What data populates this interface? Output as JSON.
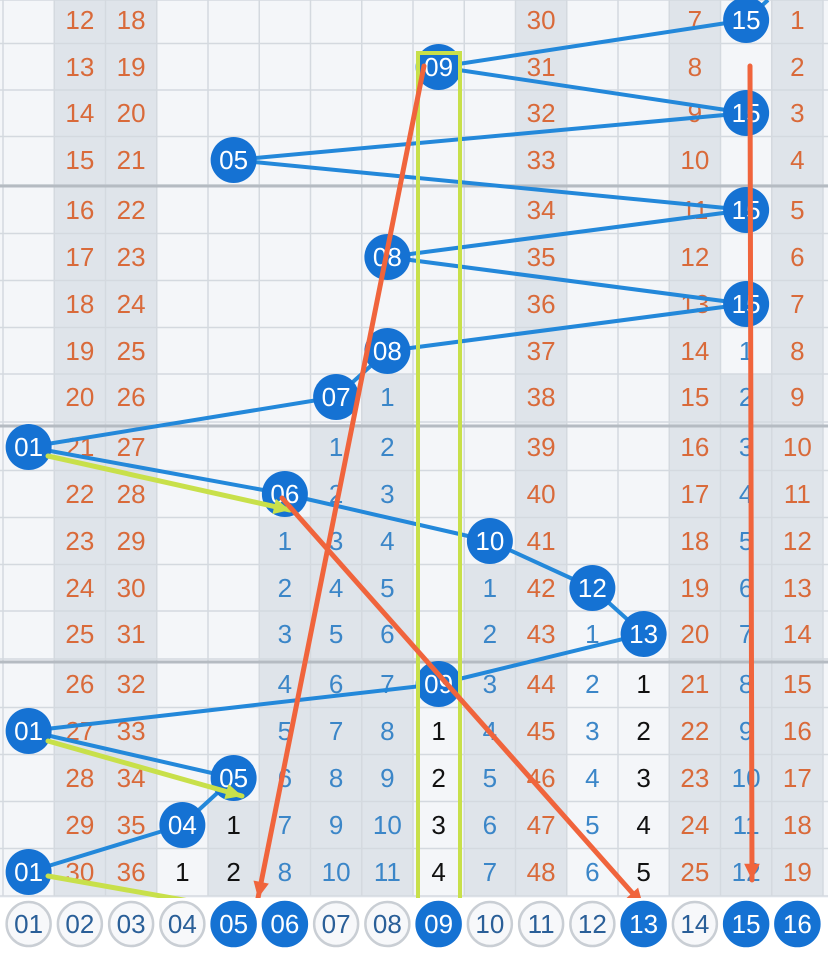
{
  "colors": {
    "grid_bg": "#f4f6f9",
    "grid_line": "#d4d9df",
    "group_line": "#b5bbc2",
    "shade": "#dfe4ea",
    "orange_text": "#d96a3a",
    "blue_text": "#3b86c8",
    "black_text": "#111111",
    "ball_blue": "#1572d3",
    "ball_text": "#ffffff",
    "line_blue": "#2388da",
    "line_orange": "#f0643c",
    "line_lime": "#c8e04a",
    "footer_ring": "#c9ced4"
  },
  "footer": {
    "labels": [
      "01",
      "02",
      "03",
      "04",
      "05",
      "06",
      "07",
      "08",
      "09",
      "10",
      "11",
      "12",
      "13",
      "14",
      "15",
      "16"
    ],
    "highlighted": [
      "05",
      "06",
      "09",
      "13",
      "15",
      "16"
    ]
  },
  "rows": [
    {
      "c2": "12",
      "c3": "18",
      "c11": "30",
      "c14": "7",
      "c16": "1",
      "ball": {
        "col": 15,
        "label": "15"
      }
    },
    {
      "c2": "13",
      "c3": "19",
      "c11": "31",
      "c14": "8",
      "c16": "2",
      "ball": {
        "col": 9,
        "label": "09"
      }
    },
    {
      "c2": "14",
      "c3": "20",
      "c11": "32",
      "c14": "9",
      "c16": "3",
      "ball": {
        "col": 15,
        "label": "15"
      }
    },
    {
      "c2": "15",
      "c3": "21",
      "c11": "33",
      "c14": "10",
      "c16": "4",
      "ball": {
        "col": 5,
        "label": "05"
      }
    },
    {
      "c2": "16",
      "c3": "22",
      "c11": "34",
      "c14": "11",
      "c16": "5",
      "ball": {
        "col": 15,
        "label": "15"
      }
    },
    {
      "c2": "17",
      "c3": "23",
      "c11": "35",
      "c14": "12",
      "c16": "6",
      "ball": {
        "col": 8,
        "label": "08"
      }
    },
    {
      "c2": "18",
      "c3": "24",
      "c11": "36",
      "c14": "13",
      "c16": "7",
      "ball": {
        "col": 15,
        "label": "15"
      }
    },
    {
      "c2": "19",
      "c3": "25",
      "c11": "37",
      "c14": "14",
      "c15": "1",
      "c16": "8",
      "ball": {
        "col": 8,
        "label": "08"
      }
    },
    {
      "c2": "20",
      "c3": "26",
      "c8": "1",
      "c11": "38",
      "c14": "15",
      "c15": "2",
      "c16": "9",
      "ball": {
        "col": 7,
        "label": "07"
      }
    },
    {
      "c2": "21",
      "c3": "27",
      "c7": "1",
      "c8": "2",
      "c11": "39",
      "c14": "16",
      "c15": "3",
      "c16": "10",
      "ball": {
        "col": 1,
        "label": "01"
      }
    },
    {
      "c2": "22",
      "c3": "28",
      "c7": "2",
      "c8": "3",
      "c11": "40",
      "c14": "17",
      "c15": "4",
      "c16": "11",
      "ball": {
        "col": 6,
        "label": "06"
      }
    },
    {
      "c2": "23",
      "c3": "29",
      "c6": "1",
      "c7": "3",
      "c8": "4",
      "c11": "41",
      "c14": "18",
      "c15": "5",
      "c16": "12",
      "ball": {
        "col": 10,
        "label": "10"
      }
    },
    {
      "c2": "24",
      "c3": "30",
      "c6": "2",
      "c7": "4",
      "c8": "5",
      "c10": "1",
      "c11": "42",
      "c14": "19",
      "c15": "6",
      "c16": "13",
      "ball": {
        "col": 12,
        "label": "12"
      }
    },
    {
      "c2": "25",
      "c3": "31",
      "c6": "3",
      "c7": "5",
      "c8": "6",
      "c10": "2",
      "c11": "43",
      "c12": "1",
      "c14": "20",
      "c15": "7",
      "c16": "14",
      "ball": {
        "col": 13,
        "label": "13"
      }
    },
    {
      "c2": "26",
      "c3": "32",
      "c6": "4",
      "c7": "6",
      "c8": "7",
      "c10": "3",
      "c11": "44",
      "c12": "2",
      "c13": "1",
      "c14": "21",
      "c15": "8",
      "c16": "15",
      "ball": {
        "col": 9,
        "label": "09"
      }
    },
    {
      "c2": "27",
      "c3": "33",
      "c6": "5",
      "c7": "7",
      "c8": "8",
      "c9": "1",
      "c10": "4",
      "c11": "45",
      "c12": "3",
      "c13": "2",
      "c14": "22",
      "c15": "9",
      "c16": "16",
      "ball": {
        "col": 1,
        "label": "01"
      }
    },
    {
      "c2": "28",
      "c3": "34",
      "c6": "6",
      "c7": "8",
      "c8": "9",
      "c9": "2",
      "c10": "5",
      "c11": "46",
      "c12": "4",
      "c13": "3",
      "c14": "23",
      "c15": "10",
      "c16": "17",
      "ball": {
        "col": 5,
        "label": "05"
      }
    },
    {
      "c2": "29",
      "c3": "35",
      "c5": "1",
      "c6": "7",
      "c7": "9",
      "c8": "10",
      "c9": "3",
      "c10": "6",
      "c11": "47",
      "c12": "5",
      "c13": "4",
      "c14": "24",
      "c15": "11",
      "c16": "18",
      "ball": {
        "col": 4,
        "label": "04"
      }
    },
    {
      "c2": "30",
      "c3": "36",
      "c4": "1",
      "c5": "2",
      "c6": "8",
      "c7": "10",
      "c8": "11",
      "c9": "4",
      "c10": "7",
      "c11": "48",
      "c12": "6",
      "c13": "5",
      "c14": "25",
      "c15": "12",
      "c16": "19",
      "ball": {
        "col": 1,
        "label": "01"
      }
    }
  ]
}
